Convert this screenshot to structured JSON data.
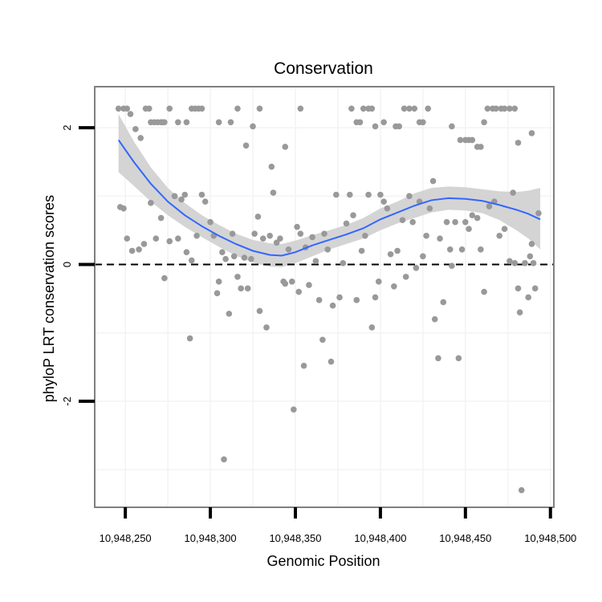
{
  "chart_data": {
    "type": "scatter",
    "title": "Conservation",
    "xlabel": "Genomic Position",
    "ylabel": "phyloP LRT conservation scores",
    "xlim": [
      10948232,
      10948502
    ],
    "ylim": [
      -3.55,
      2.6
    ],
    "x_ticks": [
      {
        "value": 10948250,
        "label": "10,948,250"
      },
      {
        "value": 10948300,
        "label": "10,948,300"
      },
      {
        "value": 10948350,
        "label": "10,948,350"
      },
      {
        "value": 10948400,
        "label": "10,948,400"
      },
      {
        "value": 10948450,
        "label": "10,948,450"
      },
      {
        "value": 10948500,
        "label": "10,948,500"
      }
    ],
    "y_ticks": [
      {
        "value": 2,
        "label": "2"
      },
      {
        "value": 0,
        "label": "0"
      },
      {
        "value": -2,
        "label": "-2"
      }
    ],
    "reference_line": {
      "y": 0,
      "style": "dashed",
      "color": "#000000"
    },
    "grid": true,
    "colors": {
      "points": "#999999",
      "smooth_line": "#3366ff",
      "confidence_band": "#cccccc",
      "grid": "#f3f3f3",
      "panel_border": "#808080"
    },
    "series": [
      {
        "name": "phyloP scores",
        "kind": "points",
        "points": [
          [
            10948246,
            2.28
          ],
          [
            10948249,
            2.28
          ],
          [
            10948251,
            2.28
          ],
          [
            10948253,
            2.2
          ],
          [
            10948256,
            1.98
          ],
          [
            10948259,
            1.85
          ],
          [
            10948262,
            2.28
          ],
          [
            10948264,
            2.28
          ],
          [
            10948265,
            2.08
          ],
          [
            10948267,
            2.08
          ],
          [
            10948269,
            2.08
          ],
          [
            10948271,
            2.08
          ],
          [
            10948272,
            2.08
          ],
          [
            10948273,
            2.08
          ],
          [
            10948276,
            2.28
          ],
          [
            10948281,
            2.08
          ],
          [
            10948286,
            2.08
          ],
          [
            10948289,
            2.28
          ],
          [
            10948291,
            2.28
          ],
          [
            10948293,
            2.28
          ],
          [
            10948295,
            2.28
          ],
          [
            10948305,
            2.08
          ],
          [
            10948312,
            2.08
          ],
          [
            10948316,
            2.28
          ],
          [
            10948325,
            2.02
          ],
          [
            10948329,
            2.28
          ],
          [
            10948353,
            2.28
          ],
          [
            10948383,
            2.28
          ],
          [
            10948386,
            2.08
          ],
          [
            10948388,
            2.08
          ],
          [
            10948390,
            2.28
          ],
          [
            10948393,
            2.28
          ],
          [
            10948395,
            2.28
          ],
          [
            10948397,
            2.02
          ],
          [
            10948402,
            2.08
          ],
          [
            10948409,
            2.02
          ],
          [
            10948411,
            2.02
          ],
          [
            10948414,
            2.28
          ],
          [
            10948417,
            2.28
          ],
          [
            10948420,
            2.28
          ],
          [
            10948423,
            2.08
          ],
          [
            10948425,
            2.08
          ],
          [
            10948428,
            2.28
          ],
          [
            10948442,
            2.02
          ],
          [
            10948447,
            1.82
          ],
          [
            10948450,
            1.82
          ],
          [
            10948452,
            1.82
          ],
          [
            10948454,
            1.82
          ],
          [
            10948457,
            1.72
          ],
          [
            10948459,
            1.72
          ],
          [
            10948461,
            2.08
          ],
          [
            10948463,
            2.28
          ],
          [
            10948466,
            2.28
          ],
          [
            10948468,
            2.28
          ],
          [
            10948471,
            2.28
          ],
          [
            10948473,
            2.28
          ],
          [
            10948476,
            2.28
          ],
          [
            10948479,
            2.28
          ],
          [
            10948489,
            1.92
          ],
          [
            10948481,
            1.78
          ],
          [
            10948321,
            1.74
          ],
          [
            10948344,
            1.72
          ],
          [
            10948336,
            1.43
          ],
          [
            10948247,
            0.84
          ],
          [
            10948249,
            0.82
          ],
          [
            10948251,
            0.38
          ],
          [
            10948254,
            0.2
          ],
          [
            10948258,
            0.22
          ],
          [
            10948261,
            0.3
          ],
          [
            10948265,
            0.9
          ],
          [
            10948268,
            0.38
          ],
          [
            10948271,
            0.68
          ],
          [
            10948273,
            -0.2
          ],
          [
            10948276,
            0.34
          ],
          [
            10948279,
            1.0
          ],
          [
            10948281,
            0.38
          ],
          [
            10948283,
            0.95
          ],
          [
            10948285,
            1.02
          ],
          [
            10948286,
            0.18
          ],
          [
            10948288,
            -1.08
          ],
          [
            10948289,
            0.06
          ],
          [
            10948292,
            0.42
          ],
          [
            10948295,
            1.02
          ],
          [
            10948297,
            0.92
          ],
          [
            10948300,
            0.62
          ],
          [
            10948302,
            0.42
          ],
          [
            10948304,
            -0.42
          ],
          [
            10948305,
            -0.25
          ],
          [
            10948307,
            0.18
          ],
          [
            10948308,
            -2.85
          ],
          [
            10948309,
            0.08
          ],
          [
            10948311,
            -0.72
          ],
          [
            10948313,
            0.45
          ],
          [
            10948314,
            0.12
          ],
          [
            10948316,
            -0.18
          ],
          [
            10948318,
            -0.35
          ],
          [
            10948320,
            0.1
          ],
          [
            10948322,
            -0.35
          ],
          [
            10948324,
            0.08
          ],
          [
            10948326,
            0.45
          ],
          [
            10948328,
            0.7
          ],
          [
            10948329,
            -0.68
          ],
          [
            10948331,
            0.38
          ],
          [
            10948333,
            -0.92
          ],
          [
            10948335,
            0.42
          ],
          [
            10948337,
            1.05
          ],
          [
            10948339,
            0.32
          ],
          [
            10948341,
            0.38
          ],
          [
            10948343,
            -0.25
          ],
          [
            10948344,
            -0.28
          ],
          [
            10948346,
            0.22
          ],
          [
            10948348,
            -0.25
          ],
          [
            10948349,
            -2.12
          ],
          [
            10948351,
            0.55
          ],
          [
            10948352,
            -0.4
          ],
          [
            10948353,
            0.45
          ],
          [
            10948355,
            -1.48
          ],
          [
            10948356,
            0.25
          ],
          [
            10948358,
            -0.3
          ],
          [
            10948360,
            0.4
          ],
          [
            10948362,
            0.05
          ],
          [
            10948364,
            -0.52
          ],
          [
            10948366,
            -1.1
          ],
          [
            10948367,
            0.45
          ],
          [
            10948369,
            0.22
          ],
          [
            10948371,
            -1.42
          ],
          [
            10948372,
            -0.6
          ],
          [
            10948374,
            1.02
          ],
          [
            10948376,
            -0.48
          ],
          [
            10948378,
            0.02
          ],
          [
            10948380,
            0.6
          ],
          [
            10948382,
            1.02
          ],
          [
            10948384,
            0.72
          ],
          [
            10948386,
            -0.52
          ],
          [
            10948389,
            0.2
          ],
          [
            10948391,
            0.42
          ],
          [
            10948393,
            1.02
          ],
          [
            10948395,
            -0.92
          ],
          [
            10948397,
            -0.48
          ],
          [
            10948399,
            -0.25
          ],
          [
            10948400,
            1.02
          ],
          [
            10948402,
            0.92
          ],
          [
            10948404,
            0.82
          ],
          [
            10948406,
            0.15
          ],
          [
            10948408,
            -0.32
          ],
          [
            10948410,
            0.2
          ],
          [
            10948413,
            0.65
          ],
          [
            10948415,
            -0.18
          ],
          [
            10948417,
            1.0
          ],
          [
            10948419,
            0.62
          ],
          [
            10948421,
            -0.05
          ],
          [
            10948423,
            0.92
          ],
          [
            10948425,
            0.12
          ],
          [
            10948427,
            0.42
          ],
          [
            10948429,
            0.82
          ],
          [
            10948431,
            1.22
          ],
          [
            10948432,
            -0.8
          ],
          [
            10948434,
            -1.37
          ],
          [
            10948435,
            0.38
          ],
          [
            10948437,
            -0.55
          ],
          [
            10948439,
            0.62
          ],
          [
            10948441,
            0.22
          ],
          [
            10948442,
            -0.02
          ],
          [
            10948444,
            0.62
          ],
          [
            10948446,
            -1.37
          ],
          [
            10948448,
            0.22
          ],
          [
            10948450,
            0.62
          ],
          [
            10948452,
            0.52
          ],
          [
            10948454,
            0.72
          ],
          [
            10948457,
            0.68
          ],
          [
            10948459,
            0.22
          ],
          [
            10948461,
            -0.4
          ],
          [
            10948464,
            0.85
          ],
          [
            10948467,
            0.92
          ],
          [
            10948470,
            0.42
          ],
          [
            10948473,
            0.52
          ],
          [
            10948476,
            0.05
          ],
          [
            10948478,
            1.05
          ],
          [
            10948479,
            0.02
          ],
          [
            10948481,
            -0.35
          ],
          [
            10948482,
            -0.7
          ],
          [
            10948483,
            -3.3
          ],
          [
            10948485,
            0.02
          ],
          [
            10948487,
            -0.48
          ],
          [
            10948489,
            0.3
          ],
          [
            10948491,
            -0.35
          ],
          [
            10948493,
            0.75
          ],
          [
            10948490,
            0.02
          ],
          [
            10948488,
            0.12
          ]
        ]
      },
      {
        "name": "loess fit",
        "kind": "line",
        "points": [
          [
            10948246,
            1.82
          ],
          [
            10948255,
            1.5
          ],
          [
            10948265,
            1.18
          ],
          [
            10948275,
            0.92
          ],
          [
            10948285,
            0.72
          ],
          [
            10948295,
            0.56
          ],
          [
            10948305,
            0.42
          ],
          [
            10948315,
            0.3
          ],
          [
            10948325,
            0.2
          ],
          [
            10948335,
            0.14
          ],
          [
            10948342,
            0.13
          ],
          [
            10948350,
            0.18
          ],
          [
            10948360,
            0.28
          ],
          [
            10948370,
            0.36
          ],
          [
            10948380,
            0.44
          ],
          [
            10948390,
            0.53
          ],
          [
            10948400,
            0.66
          ],
          [
            10948410,
            0.76
          ],
          [
            10948420,
            0.86
          ],
          [
            10948430,
            0.94
          ],
          [
            10948440,
            0.97
          ],
          [
            10948450,
            0.96
          ],
          [
            10948460,
            0.93
          ],
          [
            10948470,
            0.87
          ],
          [
            10948480,
            0.8
          ],
          [
            10948487,
            0.74
          ],
          [
            10948494,
            0.66
          ]
        ],
        "band_upper": [
          [
            10948246,
            2.2
          ],
          [
            10948255,
            1.8
          ],
          [
            10948265,
            1.42
          ],
          [
            10948275,
            1.12
          ],
          [
            10948285,
            0.9
          ],
          [
            10948295,
            0.72
          ],
          [
            10948305,
            0.58
          ],
          [
            10948315,
            0.45
          ],
          [
            10948325,
            0.36
          ],
          [
            10948335,
            0.31
          ],
          [
            10948342,
            0.3
          ],
          [
            10948350,
            0.35
          ],
          [
            10948360,
            0.43
          ],
          [
            10948370,
            0.5
          ],
          [
            10948380,
            0.58
          ],
          [
            10948390,
            0.68
          ],
          [
            10948400,
            0.82
          ],
          [
            10948410,
            0.92
          ],
          [
            10948420,
            1.04
          ],
          [
            10948430,
            1.12
          ],
          [
            10948440,
            1.14
          ],
          [
            10948450,
            1.13
          ],
          [
            10948460,
            1.1
          ],
          [
            10948470,
            1.07
          ],
          [
            10948480,
            1.06
          ],
          [
            10948487,
            1.08
          ],
          [
            10948494,
            1.12
          ]
        ],
        "band_lower": [
          [
            10948246,
            1.35
          ],
          [
            10948255,
            1.15
          ],
          [
            10948265,
            0.92
          ],
          [
            10948275,
            0.72
          ],
          [
            10948285,
            0.55
          ],
          [
            10948295,
            0.4
          ],
          [
            10948305,
            0.26
          ],
          [
            10948315,
            0.13
          ],
          [
            10948325,
            0.03
          ],
          [
            10948335,
            -0.03
          ],
          [
            10948342,
            -0.04
          ],
          [
            10948350,
            0.02
          ],
          [
            10948360,
            0.12
          ],
          [
            10948370,
            0.22
          ],
          [
            10948380,
            0.3
          ],
          [
            10948390,
            0.38
          ],
          [
            10948400,
            0.5
          ],
          [
            10948410,
            0.6
          ],
          [
            10948420,
            0.68
          ],
          [
            10948430,
            0.76
          ],
          [
            10948440,
            0.8
          ],
          [
            10948450,
            0.79
          ],
          [
            10948460,
            0.75
          ],
          [
            10948470,
            0.65
          ],
          [
            10948480,
            0.5
          ],
          [
            10948487,
            0.38
          ],
          [
            10948494,
            0.22
          ]
        ]
      }
    ]
  }
}
